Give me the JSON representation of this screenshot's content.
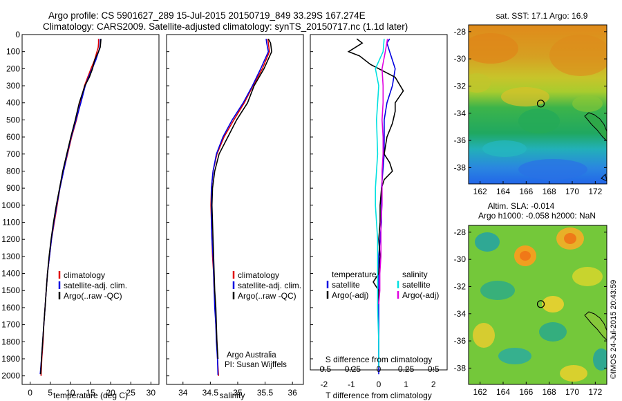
{
  "header": {
    "line1": "Argo profile: CS 5901627_289 15-Jul-2015 20150719_849 33.29S 167.274E",
    "line2": "Climatology: CARS2009. Satellite-adjusted climatology: synTS_20150717.nc (1.1d later)"
  },
  "colors": {
    "climatology": "#e00000",
    "satellite": "#0000e0",
    "argo": "#000000",
    "sal_satellite": "#00e0e0",
    "sal_argo": "#e000e0"
  },
  "credits": {
    "group": "Argo Australia",
    "pi": "PI: Susan Wijffels",
    "stamp": "©IMOS 24-Jul-2015 20:43:59"
  },
  "legends": {
    "climatology": "climatology",
    "satellite_adj": "satellite-adj. clim.",
    "argo_raw": "Argo(..raw -QC)",
    "temperature_head": "temperature",
    "salinity_head": "salinity",
    "satellite": "satellite",
    "argo_adj": "Argo(-adj)"
  },
  "chart_data": [
    {
      "id": "temperature",
      "type": "line",
      "xlabel": "temperature (deg C)",
      "ylabel": "",
      "xlim": [
        -2,
        32
      ],
      "ylim": [
        0,
        2050
      ],
      "y_reversed": true,
      "xticks": [
        0,
        5,
        10,
        15,
        20,
        25,
        30
      ],
      "yticks": [
        0,
        100,
        200,
        300,
        400,
        500,
        600,
        700,
        800,
        900,
        1000,
        1100,
        1200,
        1300,
        1400,
        1500,
        1600,
        1700,
        1800,
        1900,
        2000
      ],
      "series": [
        {
          "name": "climatology",
          "color": "#e00000",
          "points": [
            [
              17.0,
              25
            ],
            [
              17.0,
              50
            ],
            [
              16.9,
              75
            ],
            [
              16.6,
              100
            ],
            [
              16.0,
              150
            ],
            [
              15.1,
              200
            ],
            [
              14.3,
              250
            ],
            [
              13.5,
              300
            ],
            [
              12.5,
              400
            ],
            [
              11.5,
              500
            ],
            [
              10.3,
              600
            ],
            [
              9.3,
              700
            ],
            [
              8.3,
              800
            ],
            [
              7.4,
              900
            ],
            [
              6.7,
              1000
            ],
            [
              6.0,
              1100
            ],
            [
              5.3,
              1200
            ],
            [
              4.8,
              1300
            ],
            [
              4.3,
              1400
            ],
            [
              4.0,
              1500
            ],
            [
              3.7,
              1600
            ],
            [
              3.4,
              1700
            ],
            [
              3.2,
              1800
            ],
            [
              2.9,
              1900
            ],
            [
              2.7,
              2000
            ]
          ]
        },
        {
          "name": "satellite-adj. clim.",
          "color": "#0000e0",
          "points": [
            [
              17.4,
              25
            ],
            [
              17.4,
              50
            ],
            [
              17.3,
              75
            ],
            [
              17.0,
              100
            ],
            [
              16.3,
              150
            ],
            [
              15.4,
              200
            ],
            [
              14.5,
              250
            ],
            [
              13.7,
              300
            ],
            [
              12.6,
              400
            ],
            [
              11.4,
              500
            ],
            [
              10.2,
              600
            ],
            [
              9.2,
              700
            ],
            [
              8.3,
              800
            ],
            [
              7.4,
              900
            ],
            [
              6.6,
              1000
            ],
            [
              5.9,
              1100
            ],
            [
              5.3,
              1200
            ],
            [
              4.8,
              1300
            ],
            [
              4.3,
              1400
            ],
            [
              4.0,
              1500
            ],
            [
              3.7,
              1600
            ],
            [
              3.4,
              1700
            ],
            [
              3.1,
              1800
            ],
            [
              2.8,
              1900
            ],
            [
              2.5,
              1990
            ]
          ]
        },
        {
          "name": "Argo(..raw -QC)",
          "color": "#000000",
          "points": [
            [
              17.6,
              25
            ],
            [
              17.5,
              50
            ],
            [
              17.4,
              75
            ],
            [
              17.0,
              100
            ],
            [
              16.0,
              150
            ],
            [
              15.5,
              200
            ],
            [
              14.7,
              250
            ],
            [
              13.6,
              300
            ],
            [
              12.2,
              400
            ],
            [
              11.2,
              500
            ],
            [
              10.1,
              600
            ],
            [
              9.1,
              700
            ],
            [
              8.1,
              800
            ],
            [
              7.3,
              900
            ],
            [
              6.5,
              1000
            ],
            [
              5.8,
              1100
            ],
            [
              5.2,
              1200
            ],
            [
              4.7,
              1300
            ],
            [
              4.3,
              1400
            ],
            [
              4.0,
              1500
            ],
            [
              3.7,
              1600
            ],
            [
              3.4,
              1700
            ],
            [
              3.1,
              1800
            ],
            [
              2.8,
              1900
            ],
            [
              2.6,
              1990
            ]
          ]
        }
      ]
    },
    {
      "id": "salinity",
      "type": "line",
      "xlabel": "salinity",
      "ylabel": "",
      "xlim": [
        33.7,
        36.2
      ],
      "ylim": [
        0,
        2050
      ],
      "y_reversed": true,
      "xticks": [
        34,
        34.5,
        35,
        35.5,
        36
      ],
      "series": [
        {
          "name": "climatology",
          "color": "#e00000",
          "points": [
            [
              35.55,
              25
            ],
            [
              35.56,
              50
            ],
            [
              35.58,
              100
            ],
            [
              35.45,
              200
            ],
            [
              35.28,
              300
            ],
            [
              35.12,
              400
            ],
            [
              34.93,
              500
            ],
            [
              34.75,
              600
            ],
            [
              34.62,
              700
            ],
            [
              34.55,
              800
            ],
            [
              34.52,
              900
            ],
            [
              34.51,
              1000
            ],
            [
              34.52,
              1100
            ],
            [
              34.53,
              1200
            ],
            [
              34.54,
              1300
            ],
            [
              34.56,
              1400
            ],
            [
              34.57,
              1500
            ],
            [
              34.59,
              1600
            ],
            [
              34.6,
              1700
            ],
            [
              34.62,
              1800
            ],
            [
              34.63,
              1900
            ],
            [
              34.65,
              2000
            ]
          ]
        },
        {
          "name": "satellite-adj. clim.",
          "color": "#0000e0",
          "points": [
            [
              35.52,
              25
            ],
            [
              35.53,
              50
            ],
            [
              35.56,
              100
            ],
            [
              35.42,
              200
            ],
            [
              35.27,
              300
            ],
            [
              35.1,
              400
            ],
            [
              34.9,
              500
            ],
            [
              34.73,
              600
            ],
            [
              34.61,
              700
            ],
            [
              34.55,
              800
            ],
            [
              34.52,
              900
            ],
            [
              34.52,
              1000
            ],
            [
              34.52,
              1100
            ],
            [
              34.53,
              1200
            ],
            [
              34.55,
              1300
            ],
            [
              34.56,
              1400
            ],
            [
              34.57,
              1500
            ],
            [
              34.58,
              1600
            ],
            [
              34.6,
              1700
            ],
            [
              34.61,
              1800
            ],
            [
              34.63,
              1900
            ],
            [
              34.64,
              1995
            ]
          ]
        },
        {
          "name": "Argo(..raw -QC)",
          "color": "#000000",
          "points": [
            [
              35.56,
              25
            ],
            [
              35.6,
              50
            ],
            [
              35.62,
              100
            ],
            [
              35.48,
              200
            ],
            [
              35.3,
              300
            ],
            [
              35.18,
              400
            ],
            [
              34.98,
              500
            ],
            [
              34.82,
              600
            ],
            [
              34.66,
              700
            ],
            [
              34.58,
              800
            ],
            [
              34.54,
              900
            ],
            [
              34.53,
              1000
            ],
            [
              34.54,
              1100
            ],
            [
              34.55,
              1200
            ],
            [
              34.56,
              1300
            ],
            [
              34.57,
              1400
            ],
            [
              34.58,
              1500
            ],
            [
              34.6,
              1600
            ],
            [
              34.61,
              1700
            ],
            [
              34.62,
              1800
            ],
            [
              34.64,
              1900
            ]
          ]
        }
      ]
    },
    {
      "id": "differences",
      "type": "line",
      "xlabel": "T difference from climatology",
      "xlabel_top": "S difference from climatology",
      "xlim": [
        -2.5,
        2.5
      ],
      "xlim_salinity": [
        -0.625,
        0.625
      ],
      "ylim": [
        0,
        2050
      ],
      "y_reversed": true,
      "xticks": [
        -2,
        -1,
        0,
        1,
        2
      ],
      "xticklabels": [
        "-2",
        "-1",
        "0",
        "1",
        "2"
      ],
      "sticks": [
        -0.5,
        -0.25,
        0,
        0.25,
        0.5
      ],
      "sticklabels": [
        "-0.5",
        "-0.25",
        "0",
        "0.25",
        "0.5"
      ],
      "series": [
        {
          "name": "satellite",
          "group": "temperature",
          "color": "#0000e0",
          "points": [
            [
              0.4,
              25
            ],
            [
              0.3,
              50
            ],
            [
              0.4,
              100
            ],
            [
              0.5,
              150
            ],
            [
              0.6,
              200
            ],
            [
              0.5,
              300
            ],
            [
              0.3,
              400
            ],
            [
              0.2,
              500
            ],
            [
              0.2,
              700
            ],
            [
              0.1,
              900
            ],
            [
              0.1,
              1100
            ],
            [
              0.0,
              1300
            ],
            [
              0.0,
              1500
            ],
            [
              0.0,
              1700
            ],
            [
              0.0,
              1900
            ],
            [
              0.0,
              1990
            ]
          ]
        },
        {
          "name": "Argo(-adj)",
          "group": "temperature",
          "color": "#000000",
          "points": [
            [
              -0.8,
              25
            ],
            [
              -0.6,
              50
            ],
            [
              -1.1,
              100
            ],
            [
              -0.7,
              125
            ],
            [
              -0.3,
              175
            ],
            [
              0.6,
              250
            ],
            [
              0.9,
              330
            ],
            [
              0.6,
              400
            ],
            [
              0.6,
              450
            ],
            [
              0.5,
              520
            ],
            [
              0.3,
              600
            ],
            [
              0.2,
              700
            ],
            [
              0.4,
              750
            ],
            [
              0.5,
              800
            ],
            [
              0.2,
              850
            ],
            [
              0.1,
              900
            ],
            [
              0.05,
              1000
            ],
            [
              0.05,
              1100
            ],
            [
              0.0,
              1200
            ],
            [
              0.05,
              1300
            ],
            [
              0.0,
              1400
            ],
            [
              -0.2,
              1450
            ],
            [
              0.0,
              1500
            ],
            [
              0.0,
              1580
            ]
          ]
        },
        {
          "name": "satellite",
          "group": "salinity",
          "color": "#00e0e0",
          "points": [
            [
              0.05,
              25
            ],
            [
              0.04,
              100
            ],
            [
              -0.03,
              200
            ],
            [
              0.0,
              300
            ],
            [
              -0.02,
              500
            ],
            [
              -0.01,
              700
            ],
            [
              -0.02,
              800
            ],
            [
              -0.03,
              900
            ],
            [
              -0.03,
              1000
            ],
            [
              -0.02,
              1100
            ],
            [
              -0.01,
              1200
            ],
            [
              -0.01,
              1400
            ],
            [
              -0.01,
              1600
            ],
            [
              0.0,
              1800
            ],
            [
              0.0,
              1950
            ]
          ]
        },
        {
          "name": "Argo(-adj)",
          "group": "salinity",
          "color": "#e000e0",
          "points": [
            [
              0.08,
              25
            ],
            [
              0.06,
              100
            ],
            [
              0.03,
              200
            ],
            [
              0.04,
              300
            ],
            [
              0.04,
              400
            ],
            [
              0.03,
              500
            ],
            [
              0.04,
              600
            ],
            [
              0.04,
              700
            ],
            [
              0.03,
              800
            ],
            [
              0.03,
              900
            ],
            [
              0.03,
              1000
            ],
            [
              0.02,
              1100
            ],
            [
              0.02,
              1200
            ],
            [
              0.02,
              1300
            ],
            [
              0.01,
              1400
            ],
            [
              0.01,
              1500
            ],
            [
              0.0,
              1580
            ]
          ]
        }
      ]
    },
    {
      "id": "sst_map",
      "type": "heatmap",
      "title": "sat. SST: 17.1  Argo: 16.9",
      "xlim": [
        161,
        173
      ],
      "ylim": [
        -39.2,
        -27.5
      ],
      "xticks": [
        162,
        164,
        166,
        168,
        170,
        172
      ],
      "yticks": [
        -28,
        -30,
        -32,
        -34,
        -36,
        -38
      ],
      "marker": {
        "lon": 167.27,
        "lat": -33.29
      }
    },
    {
      "id": "sla_map",
      "type": "heatmap",
      "title": "Altim. SLA: -0.014",
      "subtitle": "Argo h1000: -0.058 h2000: NaN",
      "xlim": [
        161,
        173
      ],
      "ylim": [
        -39.2,
        -27.5
      ],
      "xticks": [
        162,
        164,
        166,
        168,
        170,
        172
      ],
      "yticks": [
        -28,
        -30,
        -32,
        -34,
        -36,
        -38
      ],
      "marker": {
        "lon": 167.27,
        "lat": -33.29
      }
    }
  ]
}
